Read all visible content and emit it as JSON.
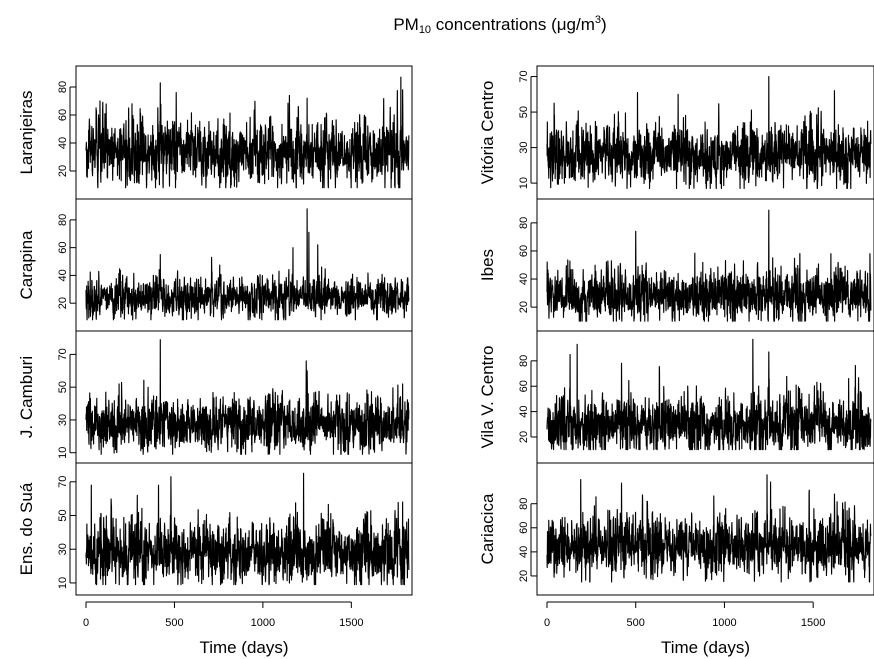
{
  "figure": {
    "title_main": "PM",
    "title_sub": "10",
    "title_rest": " concentrations (μg/m",
    "title_sup": "3",
    "title_close": ")",
    "title_parts": [
      "PM",
      "10",
      " concentrations (μg/m",
      "3",
      ")"
    ],
    "series_color": "#000000"
  },
  "chart_data": [
    {
      "type": "line",
      "column": "left",
      "xlabel": "Time (days)",
      "xticks": [
        0,
        500,
        1000,
        1500
      ],
      "xlim": [
        0,
        1826
      ],
      "panels": [
        {
          "name": "Laranjeiras",
          "ylim": [
            5,
            90
          ],
          "yticks": [
            20,
            40,
            60,
            80
          ],
          "mean": 33,
          "sd": 10,
          "min": 8,
          "max": 87,
          "peaks": [
            [
              260,
              68
            ],
            [
              420,
              83
            ],
            [
              510,
              76
            ],
            [
              1150,
              74
            ],
            [
              1250,
              72
            ],
            [
              1780,
              87
            ],
            [
              1790,
              78
            ]
          ]
        },
        {
          "name": "Carapina",
          "ylim": [
            5,
            90
          ],
          "yticks": [
            20,
            40,
            60,
            80
          ],
          "mean": 24,
          "sd": 6,
          "min": 8,
          "max": 88,
          "peaks": [
            [
              420,
              55
            ],
            [
              710,
              53
            ],
            [
              1170,
              60
            ],
            [
              1250,
              88
            ],
            [
              1260,
              71
            ],
            [
              1310,
              62
            ]
          ]
        },
        {
          "name": "J. Camburi",
          "ylim": [
            8,
            80
          ],
          "yticks": [
            10,
            30,
            50,
            70
          ],
          "mean": 27,
          "sd": 7,
          "min": 9,
          "max": 79,
          "peaks": [
            [
              420,
              79
            ],
            [
              1245,
              66
            ],
            [
              1250,
              60
            ],
            [
              1790,
              52
            ]
          ]
        },
        {
          "name": "Ens. do Suá",
          "ylim": [
            7,
            77
          ],
          "yticks": [
            10,
            30,
            50,
            70
          ],
          "mean": 28,
          "sd": 8,
          "min": 9,
          "max": 75,
          "peaks": [
            [
              30,
              68
            ],
            [
              410,
              68
            ],
            [
              480,
              73
            ],
            [
              1230,
              75
            ],
            [
              1790,
              58
            ]
          ]
        }
      ]
    },
    {
      "type": "line",
      "column": "right",
      "xlabel": "Time (days)",
      "xticks": [
        0,
        500,
        1000,
        1500
      ],
      "xlim": [
        0,
        1826
      ],
      "panels": [
        {
          "name": "Vitória Centro",
          "ylim": [
            5,
            72
          ],
          "yticks": [
            10,
            30,
            50,
            70
          ],
          "mean": 26,
          "sd": 7,
          "min": 7,
          "max": 70,
          "peaks": [
            [
              40,
              55
            ],
            [
              510,
              61
            ],
            [
              1250,
              70
            ],
            [
              1620,
              62
            ]
          ]
        },
        {
          "name": "Ibes",
          "ylim": [
            8,
            92
          ],
          "yticks": [
            20,
            40,
            60,
            80
          ],
          "mean": 28,
          "sd": 8,
          "min": 10,
          "max": 89,
          "peaks": [
            [
              500,
              74
            ],
            [
              1250,
              89
            ],
            [
              1600,
              58
            ],
            [
              1820,
              58
            ]
          ]
        },
        {
          "name": "Vila V. Centro",
          "ylim": [
            5,
            98
          ],
          "yticks": [
            20,
            40,
            60,
            80
          ],
          "mean": 30,
          "sd": 10,
          "min": 10,
          "max": 97,
          "peaks": [
            [
              130,
              85
            ],
            [
              170,
              93
            ],
            [
              420,
              78
            ],
            [
              1160,
              97
            ],
            [
              1250,
              87
            ],
            [
              1700,
              66
            ]
          ]
        },
        {
          "name": "Cariacica",
          "ylim": [
            10,
            108
          ],
          "yticks": [
            20,
            40,
            60,
            80
          ],
          "mean": 45,
          "sd": 11,
          "min": 15,
          "max": 104,
          "peaks": [
            [
              190,
              100
            ],
            [
              420,
              97
            ],
            [
              1240,
              104
            ],
            [
              1260,
              98
            ],
            [
              1620,
              88
            ]
          ]
        }
      ]
    }
  ]
}
